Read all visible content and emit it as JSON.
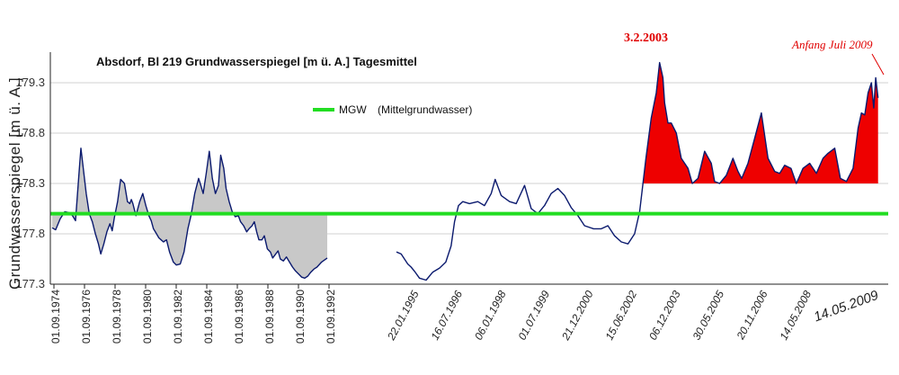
{
  "chart_data": {
    "type": "area",
    "title": "Absdorf, Bl 219 Grundwasserspiegel [m ü. A.] Tagesmittel",
    "ylabel": "Grundwasserspiegel [m ü. A.]",
    "ylim": [
      177.3,
      179.55
    ],
    "yticks": [
      "177.3",
      "177.8",
      "178.3",
      "178.8",
      "179.3"
    ],
    "grid": true,
    "xticks_left": [
      "01.09.1974",
      "01.09.1976",
      "01.09.1978",
      "01.09.1980",
      "01.09.1982",
      "01.09.1984",
      "01.09.1986",
      "01.09.1988",
      "01.09.1990",
      "01.09.1992"
    ],
    "xticks_right": [
      "22.01.1995",
      "16.07.1996",
      "06.01.1998",
      "01.07.1999",
      "21.12.2000",
      "15.06.2002",
      "06.12.2003",
      "30.05.2005",
      "20.11.2006",
      "14.05.2008"
    ],
    "xtick_last": "14.05.2009",
    "mgw": 178.0,
    "legend": {
      "label": "MGW",
      "description": "(Mittelgrundwasser)",
      "color": "#22dd22"
    },
    "annotations": [
      {
        "text": "3.2.2003",
        "color": "#e00000"
      },
      {
        "text": "Anfang Juli 2009",
        "color": "#e00000"
      }
    ],
    "colors": {
      "line": "#0b1a6e",
      "below_fill": "#c8c8c8",
      "above_fill": "#ee0000",
      "mgw": "#22dd22"
    },
    "series": [
      {
        "t": [
          1974.67,
          1974.9,
          1975.2,
          1975.5,
          1975.8,
          1976.0,
          1976.2,
          1976.45,
          1976.55,
          1976.7,
          1976.9,
          1977.1,
          1977.3,
          1977.5,
          1977.7,
          1977.85,
          1978.05,
          1978.25,
          1978.45,
          1978.6,
          1978.75,
          1978.95,
          1979.15,
          1979.4,
          1979.6,
          1979.75,
          1979.85,
          1979.95,
          1980.15,
          1980.4,
          1980.6,
          1980.8,
          1981.0,
          1981.15,
          1981.3,
          1981.5,
          1981.65,
          1981.8,
          1981.95,
          1982.15,
          1982.35,
          1982.6,
          1982.8,
          1983.05,
          1983.3,
          1983.55,
          1983.75,
          1984.0,
          1984.25,
          1984.4,
          1984.55,
          1984.75,
          1984.95,
          1985.15,
          1985.35,
          1985.55,
          1985.7,
          1985.9,
          1986.05,
          1986.25,
          1986.45,
          1986.65,
          1986.85,
          1987.0,
          1987.2,
          1987.4,
          1987.55,
          1987.75,
          1987.9,
          1988.05,
          1988.2,
          1988.4,
          1988.55,
          1988.75,
          1988.95,
          1989.1,
          1989.3,
          1989.45,
          1989.6,
          1989.8,
          1990.0,
          1990.2,
          1990.4,
          1990.6,
          1990.8,
          1991.0,
          1991.2,
          1991.4,
          1991.6,
          1991.8,
          1992.0,
          1992.3,
          1992.67
        ],
        "y": [
          177.86,
          177.84,
          177.95,
          178.02,
          178.01,
          177.98,
          177.93,
          178.45,
          178.65,
          178.46,
          178.2,
          178.0,
          177.92,
          177.8,
          177.7,
          177.6,
          177.7,
          177.82,
          177.9,
          177.83,
          177.97,
          178.12,
          178.34,
          178.3,
          178.12,
          178.1,
          178.14,
          178.1,
          177.98,
          178.12,
          178.2,
          178.08,
          177.98,
          177.93,
          177.85,
          177.8,
          177.76,
          177.74,
          177.72,
          177.74,
          177.62,
          177.52,
          177.49,
          177.5,
          177.62,
          177.85,
          177.98,
          178.2,
          178.35,
          178.28,
          178.2,
          178.4,
          178.62,
          178.35,
          178.2,
          178.28,
          178.58,
          178.45,
          178.25,
          178.12,
          178.02,
          177.97,
          177.98,
          177.92,
          177.88,
          177.82,
          177.85,
          177.88,
          177.92,
          177.82,
          177.74,
          177.74,
          177.78,
          177.65,
          177.62,
          177.56,
          177.6,
          177.63,
          177.55,
          177.53,
          177.57,
          177.52,
          177.47,
          177.43,
          177.4,
          177.37,
          177.36,
          177.38,
          177.42,
          177.45,
          177.47,
          177.52,
          177.56
        ]
      },
      {
        "t": [
          1995.06,
          1995.2,
          1995.3,
          1995.4,
          1995.5,
          1995.62,
          1995.75,
          1995.95,
          1996.15,
          1996.35,
          1996.54,
          1996.7,
          1996.8,
          1996.92,
          1997.05,
          1997.25,
          1997.5,
          1997.7,
          1997.9,
          1998.02,
          1998.2,
          1998.45,
          1998.65,
          1998.9,
          1999.1,
          1999.3,
          1999.5,
          1999.7,
          1999.9,
          2000.1,
          2000.3,
          2000.5,
          2000.7,
          2000.97,
          2001.2,
          2001.4,
          2001.6,
          2001.8,
          2002.0,
          2002.2,
          2002.35,
          2002.45,
          2002.54,
          2002.7,
          2002.85,
          2002.95,
          2003.05,
          2003.1,
          2003.2,
          2003.3,
          2003.45,
          2003.6,
          2003.8,
          2003.93,
          2004.1,
          2004.3,
          2004.5,
          2004.6,
          2004.75,
          2004.95,
          2005.15,
          2005.3,
          2005.41,
          2005.6,
          2005.8,
          2006.0,
          2006.2,
          2006.4,
          2006.55,
          2006.7,
          2006.89,
          2007.05,
          2007.25,
          2007.45,
          2007.65,
          2007.85,
          2008.0,
          2008.2,
          2008.37,
          2008.55,
          2008.75,
          2008.9,
          2009.0,
          2009.1,
          2009.2,
          2009.3,
          2009.37,
          2009.43,
          2009.5
        ],
        "y": [
          177.62,
          177.6,
          177.55,
          177.5,
          177.47,
          177.42,
          177.36,
          177.34,
          177.42,
          177.46,
          177.52,
          177.68,
          177.92,
          178.08,
          178.12,
          178.1,
          178.12,
          178.08,
          178.2,
          178.34,
          178.18,
          178.12,
          178.1,
          178.28,
          178.05,
          178.0,
          178.08,
          178.2,
          178.25,
          178.18,
          178.06,
          177.98,
          177.88,
          177.85,
          177.85,
          177.88,
          177.78,
          177.72,
          177.7,
          177.8,
          178.02,
          178.3,
          178.55,
          178.95,
          179.2,
          179.5,
          179.35,
          179.1,
          178.9,
          178.9,
          178.8,
          178.55,
          178.45,
          178.3,
          178.35,
          178.62,
          178.5,
          178.32,
          178.3,
          178.38,
          178.55,
          178.42,
          178.35,
          178.5,
          178.75,
          179.0,
          178.55,
          178.42,
          178.4,
          178.48,
          178.45,
          178.3,
          178.45,
          178.5,
          178.4,
          178.55,
          178.6,
          178.65,
          178.35,
          178.32,
          178.45,
          178.85,
          179.0,
          178.98,
          179.2,
          179.3,
          179.05,
          179.35,
          179.15
        ]
      }
    ]
  }
}
